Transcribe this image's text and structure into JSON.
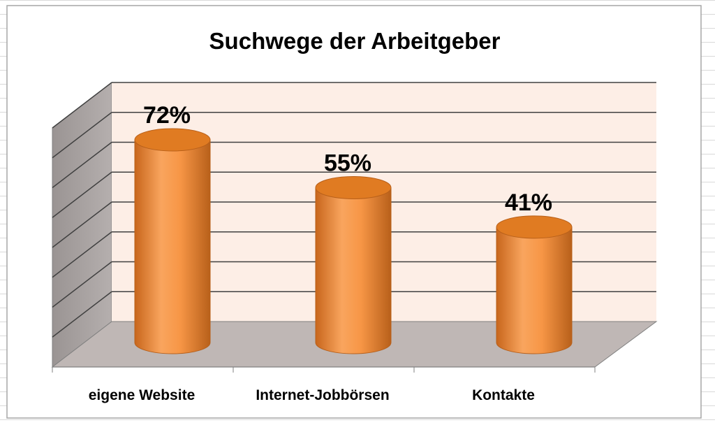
{
  "chart_data": {
    "type": "bar",
    "style": "3d-cylinder",
    "title": "Suchwege der Arbeitgeber",
    "categories": [
      "eigene Website",
      "Internet-Jobbörsen",
      "Kontakte"
    ],
    "values": [
      72,
      55,
      41
    ],
    "value_labels": [
      "72%",
      "55%",
      "41%"
    ],
    "ylim": [
      0,
      80
    ],
    "grid": true,
    "legend": "none"
  },
  "colors": {
    "bar_body": "#f79646",
    "bar_top": "#e07b22",
    "bar_shadow": "#b8601a",
    "back_wall": "#fdeee6",
    "side_wall": "#a9a4a3",
    "floor": "#bfb7b5",
    "grid_line": "#404040",
    "sheet_grid": "#d9d9d9",
    "frame": "#a6a6a6",
    "text": "#000000"
  }
}
